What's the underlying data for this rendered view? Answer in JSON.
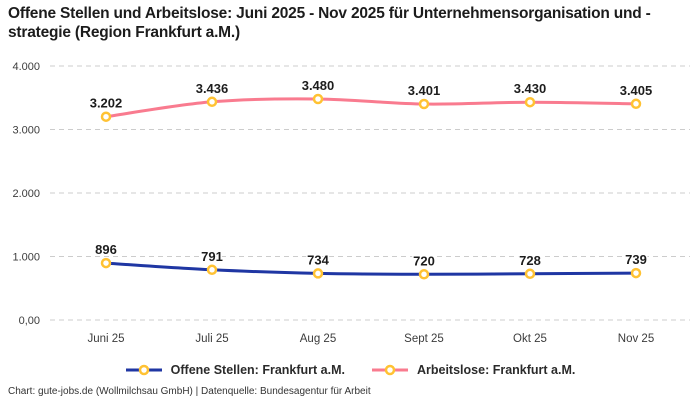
{
  "title": "Offene Stellen und Arbeitslose: Juni 2025 - Nov 2025 für Unternehmensorganisation und -strategie (Region Frankfurt a.M.)",
  "footer": "Chart: gute-jobs.de (Wollmilchsau GmbH) | Datenquelle: Bundesagentur für Arbeit",
  "colors": {
    "open_positions_line": "#1F36A3",
    "unemployed_line": "#F97B8F",
    "marker_stroke": "#FFC233",
    "marker_fill": "#FFFFFF",
    "gridline": "#CCCCCC"
  },
  "legend": {
    "items": [
      {
        "label": "Offene Stellen: Frankfurt a.M."
      },
      {
        "label": "Arbeitslose: Frankfurt a.M."
      }
    ]
  },
  "chart_data": {
    "type": "line",
    "title": "Offene Stellen und Arbeitslose: Juni 2025 - Nov 2025 für Unternehmensorganisation und -strategie (Region Frankfurt a.M.)",
    "categories": [
      "Juni 25",
      "Juli 25",
      "Aug 25",
      "Sept 25",
      "Okt 25",
      "Nov 25"
    ],
    "series": [
      {
        "name": "Offene Stellen: Frankfurt a.M.",
        "values": [
          896,
          791,
          734,
          720,
          728,
          739
        ],
        "labels": [
          "896",
          "791",
          "734",
          "720",
          "728",
          "739"
        ],
        "color": "#1F36A3"
      },
      {
        "name": "Arbeitslose: Frankfurt a.M.",
        "values": [
          3202,
          3436,
          3480,
          3401,
          3430,
          3405
        ],
        "labels": [
          "3.202",
          "3.436",
          "3.480",
          "3.401",
          "3.430",
          "3.405"
        ],
        "color": "#F97B8F"
      }
    ],
    "y_ticks": [
      {
        "value": 4000,
        "label": "4.000"
      },
      {
        "value": 3000,
        "label": "3.000"
      },
      {
        "value": 2000,
        "label": "2.000"
      },
      {
        "value": 1000,
        "label": "1.000"
      },
      {
        "value": 0,
        "label": "0,00"
      }
    ],
    "ylim": [
      0,
      4000
    ],
    "xlabel": "",
    "ylabel": "",
    "grid": "horizontal dashed",
    "legend_position": "bottom",
    "marker": {
      "fill": "#FFFFFF",
      "stroke": "#FFC233"
    }
  }
}
